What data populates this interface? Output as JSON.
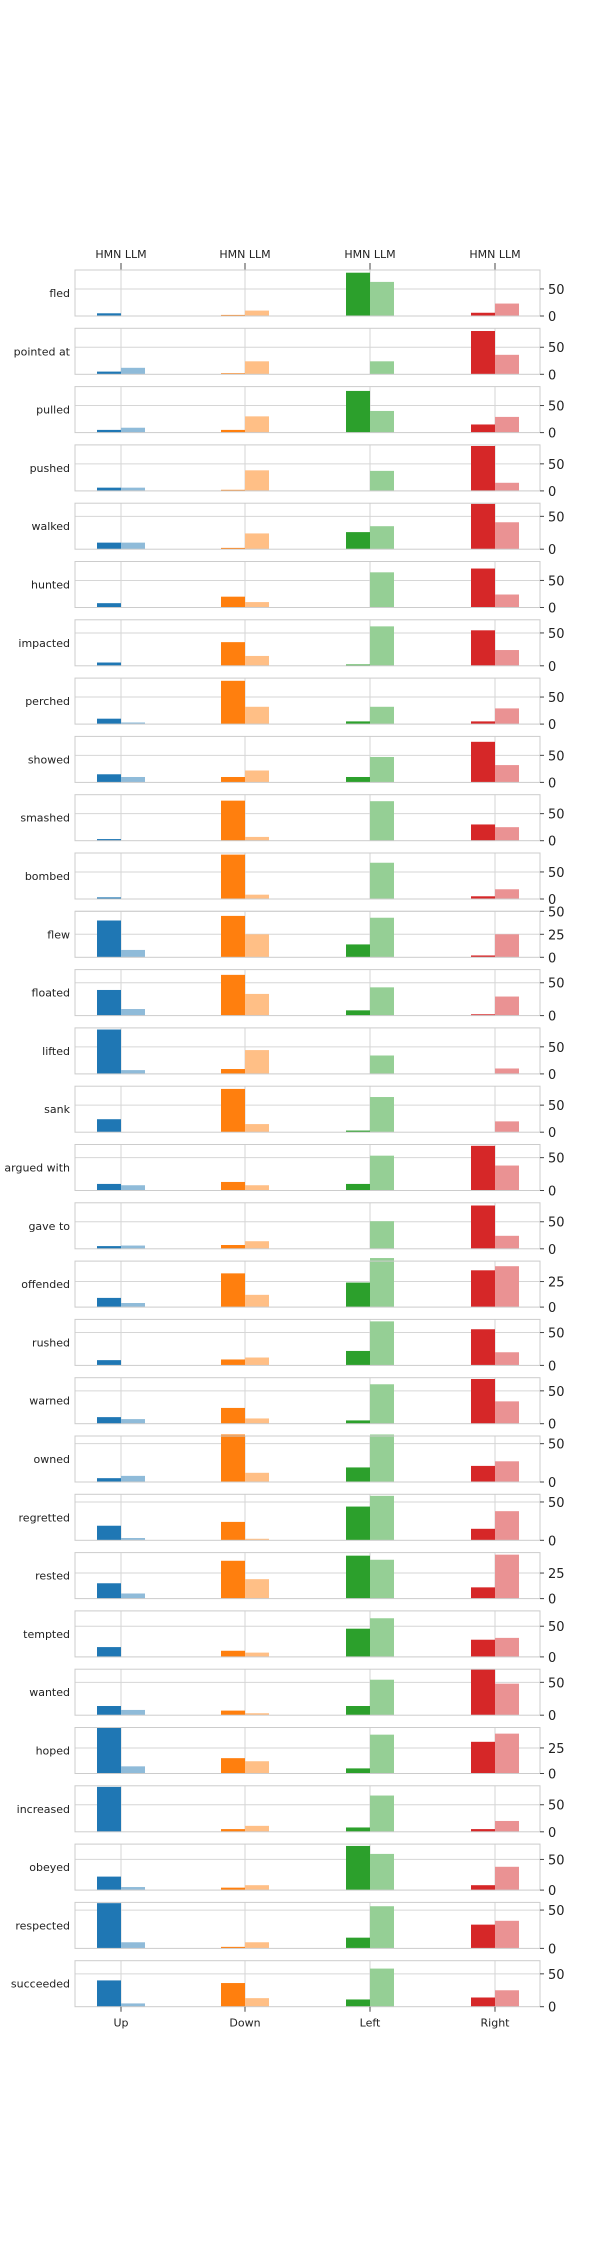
{
  "chart_data": {
    "type": "bar",
    "title": "",
    "xlabel": "",
    "ylabel": "",
    "categories": [
      "Up",
      "Down",
      "Left",
      "Right"
    ],
    "series": [
      {
        "name": "HMN"
      },
      {
        "name": "LLM"
      }
    ],
    "colors": {
      "Up": {
        "HMN": "#1f77b4",
        "LLM": "#8fbbd9"
      },
      "Down": {
        "HMN": "#ff7f0e",
        "LLM": "#ffbf86"
      },
      "Left": {
        "HMN": "#2ca02c",
        "LLM": "#95cf95"
      },
      "Right": {
        "HMN": "#d62728",
        "LLM": "#ea9293"
      }
    },
    "grid": true,
    "panels": [
      {
        "verb": "fled",
        "ylim": [
          0,
          85
        ],
        "yticks": [
          0,
          50
        ],
        "hmn": [
          5,
          2,
          80,
          6
        ],
        "llm": [
          0,
          10,
          63,
          23
        ]
      },
      {
        "verb": "pointed at",
        "ylim": [
          0,
          85
        ],
        "yticks": [
          0,
          50
        ],
        "hmn": [
          5,
          2,
          0,
          80
        ],
        "llm": [
          12,
          24,
          24,
          36
        ]
      },
      {
        "verb": "pulled",
        "ylim": [
          0,
          85
        ],
        "yticks": [
          0,
          50
        ],
        "hmn": [
          5,
          5,
          77,
          15
        ],
        "llm": [
          9,
          30,
          40,
          29
        ]
      },
      {
        "verb": "pushed",
        "ylim": [
          0,
          85
        ],
        "yticks": [
          0,
          50
        ],
        "hmn": [
          6,
          2,
          0,
          83
        ],
        "llm": [
          6,
          38,
          37,
          15
        ]
      },
      {
        "verb": "walked",
        "ylim": [
          0,
          70
        ],
        "yticks": [
          0,
          50
        ],
        "hmn": [
          10,
          2,
          26,
          69
        ],
        "llm": [
          10,
          24,
          35,
          41
        ]
      },
      {
        "verb": "hunted",
        "ylim": [
          0,
          85
        ],
        "yticks": [
          0,
          50
        ],
        "hmn": [
          8,
          20,
          0,
          72
        ],
        "llm": [
          0,
          10,
          65,
          24
        ]
      },
      {
        "verb": "impacted",
        "ylim": [
          0,
          70
        ],
        "yticks": [
          0,
          50
        ],
        "hmn": [
          5,
          36,
          2,
          54
        ],
        "llm": [
          0,
          15,
          60,
          24
        ]
      },
      {
        "verb": "perched",
        "ylim": [
          0,
          85
        ],
        "yticks": [
          0,
          50
        ],
        "hmn": [
          10,
          80,
          5,
          5
        ],
        "llm": [
          3,
          32,
          32,
          29
        ]
      },
      {
        "verb": "showed",
        "ylim": [
          0,
          85
        ],
        "yticks": [
          0,
          50
        ],
        "hmn": [
          15,
          10,
          10,
          75
        ],
        "llm": [
          10,
          22,
          47,
          32
        ]
      },
      {
        "verb": "smashed",
        "ylim": [
          0,
          85
        ],
        "yticks": [
          0,
          50
        ],
        "hmn": [
          3,
          74,
          0,
          30
        ],
        "llm": [
          0,
          7,
          73,
          25
        ]
      },
      {
        "verb": "bombed",
        "ylim": [
          0,
          85
        ],
        "yticks": [
          0,
          50
        ],
        "hmn": [
          3,
          82,
          0,
          5
        ],
        "llm": [
          0,
          8,
          67,
          18
        ]
      },
      {
        "verb": "flew",
        "ylim": [
          0,
          50
        ],
        "yticks": [
          0,
          25,
          50
        ],
        "hmn": [
          40,
          45,
          14,
          2
        ],
        "llm": [
          8,
          25,
          43,
          25
        ]
      },
      {
        "verb": "floated",
        "ylim": [
          0,
          70
        ],
        "yticks": [
          0,
          50
        ],
        "hmn": [
          39,
          62,
          8,
          2
        ],
        "llm": [
          10,
          33,
          43,
          29
        ]
      },
      {
        "verb": "lifted",
        "ylim": [
          0,
          85
        ],
        "yticks": [
          0,
          50
        ],
        "hmn": [
          82,
          9,
          0,
          0
        ],
        "llm": [
          7,
          44,
          34,
          10
        ]
      },
      {
        "verb": "sank",
        "ylim": [
          0,
          85
        ],
        "yticks": [
          0,
          50
        ],
        "hmn": [
          24,
          80,
          3,
          0
        ],
        "llm": [
          0,
          15,
          65,
          20
        ]
      },
      {
        "verb": "argued with",
        "ylim": [
          0,
          70
        ],
        "yticks": [
          0,
          50
        ],
        "hmn": [
          10,
          13,
          10,
          68
        ],
        "llm": [
          8,
          8,
          53,
          38
        ]
      },
      {
        "verb": "gave to",
        "ylim": [
          0,
          85
        ],
        "yticks": [
          0,
          50
        ],
        "hmn": [
          5,
          7,
          0,
          80
        ],
        "llm": [
          6,
          14,
          51,
          24
        ]
      },
      {
        "verb": "offended",
        "ylim": [
          0,
          45
        ],
        "yticks": [
          0,
          25
        ],
        "hmn": [
          9,
          33,
          24,
          36
        ],
        "llm": [
          4,
          12,
          48,
          40
        ]
      },
      {
        "verb": "rushed",
        "ylim": [
          0,
          70
        ],
        "yticks": [
          0,
          50
        ],
        "hmn": [
          8,
          9,
          22,
          55
        ],
        "llm": [
          0,
          12,
          67,
          20
        ]
      },
      {
        "verb": "warned",
        "ylim": [
          0,
          70
        ],
        "yticks": [
          0,
          50
        ],
        "hmn": [
          10,
          24,
          5,
          68
        ],
        "llm": [
          7,
          8,
          60,
          34
        ]
      },
      {
        "verb": "owned",
        "ylim": [
          0,
          60
        ],
        "yticks": [
          0,
          50
        ],
        "hmn": [
          5,
          62,
          19,
          21
        ],
        "llm": [
          8,
          12,
          62,
          27
        ]
      },
      {
        "verb": "regretted",
        "ylim": [
          0,
          60
        ],
        "yticks": [
          0,
          50
        ],
        "hmn": [
          19,
          24,
          44,
          15
        ],
        "llm": [
          3,
          2,
          58,
          38
        ]
      },
      {
        "verb": "rested",
        "ylim": [
          0,
          45
        ],
        "yticks": [
          0,
          25
        ],
        "hmn": [
          15,
          37,
          42,
          11
        ],
        "llm": [
          5,
          19,
          38,
          43
        ]
      },
      {
        "verb": "tempted",
        "ylim": [
          0,
          75
        ],
        "yticks": [
          0,
          50
        ],
        "hmn": [
          16,
          10,
          46,
          28
        ],
        "llm": [
          0,
          7,
          63,
          31
        ]
      },
      {
        "verb": "wanted",
        "ylim": [
          0,
          70
        ],
        "yticks": [
          0,
          50
        ],
        "hmn": [
          14,
          7,
          14,
          70
        ],
        "llm": [
          8,
          3,
          54,
          48
        ]
      },
      {
        "verb": "hoped",
        "ylim": [
          0,
          45
        ],
        "yticks": [
          0,
          25
        ],
        "hmn": [
          45,
          15,
          5,
          31
        ],
        "llm": [
          7,
          12,
          38,
          39
        ]
      },
      {
        "verb": "increased",
        "ylim": [
          0,
          85
        ],
        "yticks": [
          0,
          50
        ],
        "hmn": [
          83,
          5,
          8,
          5
        ],
        "llm": [
          0,
          11,
          67,
          20
        ]
      },
      {
        "verb": "obeyed",
        "ylim": [
          0,
          75
        ],
        "yticks": [
          0,
          50
        ],
        "hmn": [
          22,
          4,
          72,
          8
        ],
        "llm": [
          5,
          8,
          59,
          38
        ]
      },
      {
        "verb": "respected",
        "ylim": [
          0,
          60
        ],
        "yticks": [
          0,
          50
        ],
        "hmn": [
          59,
          2,
          14,
          31
        ],
        "llm": [
          8,
          8,
          55,
          36
        ]
      },
      {
        "verb": "succeeded",
        "ylim": [
          0,
          70
        ],
        "yticks": [
          0,
          50
        ],
        "hmn": [
          40,
          36,
          11,
          14
        ],
        "llm": [
          5,
          13,
          58,
          25
        ]
      }
    ]
  }
}
